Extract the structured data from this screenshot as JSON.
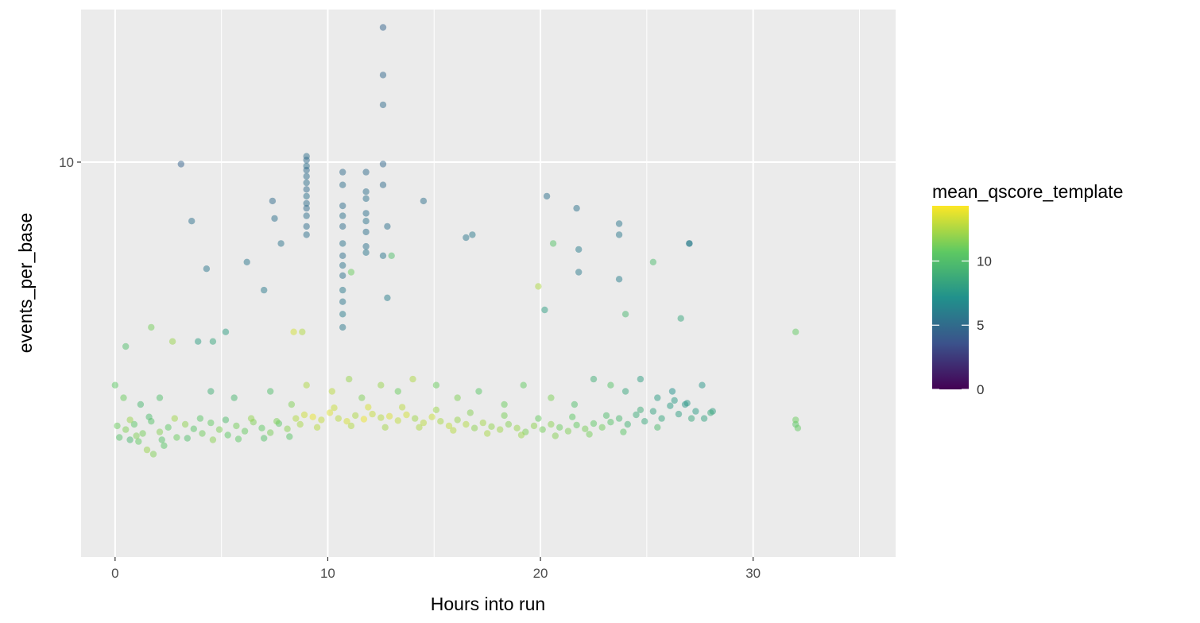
{
  "chart_data": {
    "type": "scatter",
    "title": "",
    "xlabel": "Hours into run",
    "ylabel": "events_per_base",
    "x_ticks": [
      "0",
      "10",
      "20",
      "30"
    ],
    "y_ticks": [
      "10"
    ],
    "xlim": [
      -1.6,
      36.7
    ],
    "ylim": [
      1.33,
      21.8
    ],
    "y_scale": "log",
    "grid": true,
    "legend": {
      "title": "mean_qscore_template",
      "placement": "right",
      "type": "colorbar",
      "labels": [
        "10",
        "5",
        "0"
      ],
      "range": [
        0,
        14.3
      ],
      "colors": [
        "#440154",
        "#3b528b",
        "#21918c",
        "#5ec962",
        "#fde725"
      ]
    },
    "background_color": "#ebebeb",
    "point_opacity": 0.5,
    "points": [
      [
        12.6,
        19.9,
        4.6
      ],
      [
        12.6,
        15.6,
        4.8
      ],
      [
        12.6,
        13.4,
        5.0
      ],
      [
        3.1,
        9.9,
        4.5
      ],
      [
        9.0,
        10.3,
        5.2
      ],
      [
        9.0,
        10.1,
        5.0
      ],
      [
        9.0,
        9.8,
        5.3
      ],
      [
        9.0,
        9.6,
        5.0
      ],
      [
        9.0,
        9.3,
        5.1
      ],
      [
        9.0,
        9.0,
        5.2
      ],
      [
        9.0,
        8.7,
        5.0
      ],
      [
        9.0,
        8.4,
        5.4
      ],
      [
        9.0,
        8.1,
        5.1
      ],
      [
        9.0,
        7.9,
        5.0
      ],
      [
        9.0,
        7.6,
        5.2
      ],
      [
        9.0,
        7.2,
        5.1
      ],
      [
        9.0,
        6.9,
        5.3
      ],
      [
        10.7,
        9.5,
        5.0
      ],
      [
        10.7,
        8.9,
        5.2
      ],
      [
        10.7,
        8.0,
        5.1
      ],
      [
        10.7,
        7.6,
        5.4
      ],
      [
        10.7,
        7.2,
        5.1
      ],
      [
        10.7,
        6.6,
        5.5
      ],
      [
        10.7,
        6.2,
        5.2
      ],
      [
        10.7,
        5.9,
        5.5
      ],
      [
        10.7,
        5.6,
        5.4
      ],
      [
        10.7,
        5.2,
        5.8
      ],
      [
        10.7,
        4.9,
        5.6
      ],
      [
        10.7,
        4.6,
        5.9
      ],
      [
        10.7,
        4.3,
        5.7
      ],
      [
        11.8,
        9.5,
        5.0
      ],
      [
        11.8,
        8.6,
        5.2
      ],
      [
        11.8,
        8.3,
        5.4
      ],
      [
        11.8,
        7.7,
        5.3
      ],
      [
        11.8,
        7.4,
        5.5
      ],
      [
        11.8,
        7.0,
        5.3
      ],
      [
        11.8,
        6.5,
        5.4
      ],
      [
        11.8,
        6.3,
        5.6
      ],
      [
        12.6,
        9.9,
        4.8
      ],
      [
        12.6,
        8.9,
        5.0
      ],
      [
        12.6,
        6.2,
        5.6
      ],
      [
        12.8,
        7.2,
        5.3
      ],
      [
        12.8,
        5.0,
        6.0
      ],
      [
        3.6,
        7.4,
        5.3
      ],
      [
        4.3,
        5.8,
        5.6
      ],
      [
        6.2,
        6.0,
        5.6
      ],
      [
        7.0,
        5.2,
        5.8
      ],
      [
        7.4,
        8.2,
        5.0
      ],
      [
        7.5,
        7.5,
        5.3
      ],
      [
        7.8,
        6.6,
        5.5
      ],
      [
        14.5,
        8.2,
        5.2
      ],
      [
        16.5,
        6.8,
        5.6
      ],
      [
        16.8,
        6.9,
        5.8
      ],
      [
        20.3,
        8.4,
        5.3
      ],
      [
        21.7,
        7.9,
        5.4
      ],
      [
        21.8,
        6.4,
        5.9
      ],
      [
        21.8,
        5.7,
        5.8
      ],
      [
        23.7,
        7.3,
        5.6
      ],
      [
        23.7,
        6.9,
        5.7
      ],
      [
        23.7,
        5.5,
        6.0
      ],
      [
        27.0,
        6.6,
        5.8
      ],
      [
        27.0,
        6.6,
        6.1
      ],
      [
        20.6,
        6.6,
        10.2
      ],
      [
        25.3,
        6.0,
        9.8
      ],
      [
        11.1,
        5.7,
        11.0
      ],
      [
        13.0,
        6.2,
        10.0
      ],
      [
        19.9,
        5.3,
        12.5
      ],
      [
        24.0,
        4.6,
        9.5
      ],
      [
        20.2,
        4.7,
        8.0
      ],
      [
        26.6,
        4.5,
        8.5
      ],
      [
        32.0,
        4.2,
        10.8
      ],
      [
        1.7,
        4.3,
        11.2
      ],
      [
        0.5,
        3.9,
        10.0
      ],
      [
        2.7,
        4.0,
        12.0
      ],
      [
        3.9,
        4.0,
        8.0
      ],
      [
        4.6,
        4.0,
        8.5
      ],
      [
        5.2,
        4.2,
        8.0
      ],
      [
        8.4,
        4.2,
        13.3
      ],
      [
        8.8,
        4.2,
        12.6
      ],
      [
        0.0,
        3.2,
        10.6
      ],
      [
        0.4,
        3.0,
        11.0
      ],
      [
        1.2,
        2.9,
        9.5
      ],
      [
        2.1,
        3.0,
        10.0
      ],
      [
        4.5,
        3.1,
        9.0
      ],
      [
        5.6,
        3.0,
        9.5
      ],
      [
        7.3,
        3.1,
        10.0
      ],
      [
        8.3,
        2.9,
        11.5
      ],
      [
        9.0,
        3.2,
        12.5
      ],
      [
        10.2,
        3.1,
        12.8
      ],
      [
        11.0,
        3.3,
        12.0
      ],
      [
        11.6,
        3.0,
        11.5
      ],
      [
        12.5,
        3.2,
        12.0
      ],
      [
        13.3,
        3.1,
        11.0
      ],
      [
        14.0,
        3.3,
        12.5
      ],
      [
        15.1,
        3.2,
        11.0
      ],
      [
        16.1,
        3.0,
        11.5
      ],
      [
        17.1,
        3.1,
        10.5
      ],
      [
        18.3,
        2.9,
        11.0
      ],
      [
        19.2,
        3.2,
        10.8
      ],
      [
        20.5,
        3.0,
        11.4
      ],
      [
        21.6,
        2.9,
        10.0
      ],
      [
        22.5,
        3.3,
        9.0
      ],
      [
        23.3,
        3.2,
        10.2
      ],
      [
        24.0,
        3.1,
        8.5
      ],
      [
        24.7,
        3.3,
        8.0
      ],
      [
        25.5,
        3.0,
        7.8
      ],
      [
        26.2,
        3.1,
        7.2
      ],
      [
        26.8,
        2.9,
        7.5
      ],
      [
        27.6,
        3.2,
        7.5
      ],
      [
        28.1,
        2.8,
        8.0
      ],
      [
        0.1,
        2.6,
        11.0
      ],
      [
        0.5,
        2.55,
        11.5
      ],
      [
        0.9,
        2.62,
        10.5
      ],
      [
        1.3,
        2.5,
        11.2
      ],
      [
        1.7,
        2.66,
        10.2
      ],
      [
        2.1,
        2.52,
        11.6
      ],
      [
        2.5,
        2.58,
        10.6
      ],
      [
        2.9,
        2.45,
        11.0
      ],
      [
        3.3,
        2.62,
        11.8
      ],
      [
        3.7,
        2.56,
        10.4
      ],
      [
        4.1,
        2.5,
        11.1
      ],
      [
        4.5,
        2.64,
        10.8
      ],
      [
        4.9,
        2.55,
        11.4
      ],
      [
        5.3,
        2.48,
        10.6
      ],
      [
        5.7,
        2.6,
        11.2
      ],
      [
        6.1,
        2.53,
        10.9
      ],
      [
        6.5,
        2.65,
        11.5
      ],
      [
        6.9,
        2.57,
        10.7
      ],
      [
        7.3,
        2.51,
        11.3
      ],
      [
        7.7,
        2.63,
        10.5
      ],
      [
        8.1,
        2.56,
        11.7
      ],
      [
        8.5,
        2.7,
        12.6
      ],
      [
        8.9,
        2.75,
        13.2
      ],
      [
        9.3,
        2.72,
        13.8
      ],
      [
        9.7,
        2.68,
        13.0
      ],
      [
        10.1,
        2.78,
        13.6
      ],
      [
        10.5,
        2.7,
        12.8
      ],
      [
        10.9,
        2.66,
        13.4
      ],
      [
        11.3,
        2.74,
        12.5
      ],
      [
        11.7,
        2.69,
        13.9
      ],
      [
        12.1,
        2.76,
        13.0
      ],
      [
        12.5,
        2.71,
        12.7
      ],
      [
        12.9,
        2.73,
        13.5
      ],
      [
        13.3,
        2.67,
        12.9
      ],
      [
        13.7,
        2.75,
        13.3
      ],
      [
        14.1,
        2.7,
        12.2
      ],
      [
        14.5,
        2.64,
        12.8
      ],
      [
        14.9,
        2.72,
        13.1
      ],
      [
        15.3,
        2.66,
        12.4
      ],
      [
        15.7,
        2.6,
        12.9
      ],
      [
        16.1,
        2.68,
        12.0
      ],
      [
        16.5,
        2.62,
        12.6
      ],
      [
        16.9,
        2.57,
        11.8
      ],
      [
        17.3,
        2.64,
        12.3
      ],
      [
        17.7,
        2.59,
        11.9
      ],
      [
        18.1,
        2.55,
        12.2
      ],
      [
        18.5,
        2.62,
        11.6
      ],
      [
        18.9,
        2.57,
        12.0
      ],
      [
        19.3,
        2.52,
        11.4
      ],
      [
        19.7,
        2.6,
        11.8
      ],
      [
        20.1,
        2.55,
        11.2
      ],
      [
        20.5,
        2.62,
        11.7
      ],
      [
        20.9,
        2.58,
        11.0
      ],
      [
        21.3,
        2.53,
        11.5
      ],
      [
        21.7,
        2.61,
        10.8
      ],
      [
        22.1,
        2.56,
        11.3
      ],
      [
        22.5,
        2.63,
        10.6
      ],
      [
        22.9,
        2.58,
        11.1
      ],
      [
        23.3,
        2.65,
        10.2
      ],
      [
        23.7,
        2.7,
        9.6
      ],
      [
        24.1,
        2.62,
        9.2
      ],
      [
        24.5,
        2.75,
        8.8
      ],
      [
        24.9,
        2.66,
        8.6
      ],
      [
        25.3,
        2.8,
        8.2
      ],
      [
        25.7,
        2.7,
        8.4
      ],
      [
        26.1,
        2.88,
        7.8
      ],
      [
        26.5,
        2.76,
        8.0
      ],
      [
        26.9,
        2.92,
        7.6
      ],
      [
        27.3,
        2.8,
        7.8
      ],
      [
        27.7,
        2.7,
        8.2
      ],
      [
        28.0,
        2.78,
        8.6
      ],
      [
        0.2,
        2.45,
        10.2
      ],
      [
        0.7,
        2.68,
        12.0
      ],
      [
        1.1,
        2.4,
        10.8
      ],
      [
        1.6,
        2.72,
        9.8
      ],
      [
        2.2,
        2.42,
        10.3
      ],
      [
        2.8,
        2.7,
        12.2
      ],
      [
        3.4,
        2.44,
        10.0
      ],
      [
        4.0,
        2.7,
        10.5
      ],
      [
        4.6,
        2.42,
        11.7
      ],
      [
        5.2,
        2.68,
        9.9
      ],
      [
        5.8,
        2.43,
        10.6
      ],
      [
        6.4,
        2.7,
        11.9
      ],
      [
        7.0,
        2.44,
        10.1
      ],
      [
        7.6,
        2.66,
        11.4
      ],
      [
        8.2,
        2.46,
        10.4
      ],
      [
        8.7,
        2.62,
        12.4
      ],
      [
        9.5,
        2.58,
        12.7
      ],
      [
        10.3,
        2.85,
        13.1
      ],
      [
        11.1,
        2.6,
        12.6
      ],
      [
        11.9,
        2.86,
        13.4
      ],
      [
        12.7,
        2.58,
        12.3
      ],
      [
        13.5,
        2.86,
        12.8
      ],
      [
        14.3,
        2.58,
        12.5
      ],
      [
        15.1,
        2.82,
        12.1
      ],
      [
        15.9,
        2.54,
        12.7
      ],
      [
        16.7,
        2.78,
        11.6
      ],
      [
        17.5,
        2.5,
        12.4
      ],
      [
        18.3,
        2.74,
        11.3
      ],
      [
        19.1,
        2.48,
        12.1
      ],
      [
        19.9,
        2.7,
        10.9
      ],
      [
        20.7,
        2.47,
        11.6
      ],
      [
        21.5,
        2.72,
        10.6
      ],
      [
        22.3,
        2.49,
        11.2
      ],
      [
        23.1,
        2.74,
        9.9
      ],
      [
        23.9,
        2.52,
        10.5
      ],
      [
        24.7,
        2.82,
        8.9
      ],
      [
        25.5,
        2.58,
        9.7
      ],
      [
        26.3,
        2.96,
        7.7
      ],
      [
        27.1,
        2.7,
        8.5
      ],
      [
        1.5,
        2.3,
        12.0
      ],
      [
        1.8,
        2.25,
        11.5
      ],
      [
        2.3,
        2.35,
        10.5
      ],
      [
        0.7,
        2.42,
        9.5
      ],
      [
        1.0,
        2.47,
        11.5
      ],
      [
        32.0,
        2.62,
        10.5
      ],
      [
        32.1,
        2.57,
        10.8
      ],
      [
        32.0,
        2.68,
        11.0
      ]
    ]
  }
}
